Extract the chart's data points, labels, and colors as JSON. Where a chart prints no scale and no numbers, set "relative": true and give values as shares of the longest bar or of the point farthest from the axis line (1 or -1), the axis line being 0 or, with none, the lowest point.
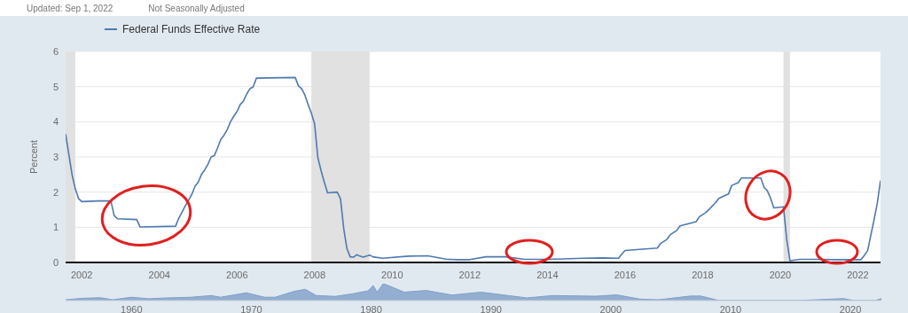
{
  "chart_data": [
    {
      "type": "line",
      "ylabel": "Percent",
      "annotations": [
        "Updated: Sep 1, 2022",
        "Not Seasonally Adjusted"
      ],
      "x": [
        "2001-08",
        "2001-09",
        "2001-10",
        "2001-11",
        "2001-12",
        "2002-01",
        "2002-06",
        "2002-10",
        "2002-11",
        "2002-12",
        "2003-06",
        "2003-07",
        "2004-06",
        "2004-07",
        "2004-08",
        "2004-09",
        "2004-10",
        "2004-11",
        "2004-12",
        "2005-01",
        "2005-02",
        "2005-03",
        "2005-04",
        "2005-05",
        "2005-06",
        "2005-07",
        "2005-08",
        "2005-09",
        "2005-10",
        "2005-11",
        "2005-12",
        "2006-01",
        "2006-02",
        "2006-03",
        "2006-04",
        "2006-05",
        "2006-06",
        "2006-07",
        "2007-07",
        "2007-08",
        "2007-09",
        "2007-10",
        "2007-11",
        "2007-12",
        "2008-01",
        "2008-02",
        "2008-03",
        "2008-04",
        "2008-05",
        "2008-08",
        "2008-09",
        "2008-10",
        "2008-11",
        "2008-12",
        "2009-01",
        "2009-02",
        "2009-03",
        "2009-04",
        "2009-06",
        "2009-07",
        "2009-10",
        "2010-06",
        "2010-12",
        "2011-06",
        "2011-09",
        "2012-01",
        "2012-06",
        "2012-12",
        "2013-06",
        "2013-12",
        "2014-06",
        "2014-12",
        "2015-06",
        "2015-11",
        "2015-12",
        "2016-01",
        "2016-11",
        "2016-12",
        "2017-02",
        "2017-03",
        "2017-05",
        "2017-06",
        "2017-11",
        "2017-12",
        "2018-02",
        "2018-03",
        "2018-05",
        "2018-06",
        "2018-08",
        "2018-09",
        "2018-10",
        "2018-12",
        "2019-01",
        "2019-07",
        "2019-08",
        "2019-09",
        "2019-10",
        "2019-11",
        "2020-02",
        "2020-03",
        "2020-04",
        "2020-07",
        "2021-01",
        "2021-06",
        "2022-02",
        "2022-03",
        "2022-04",
        "2022-05",
        "2022-06",
        "2022-07",
        "2022-08"
      ],
      "series": [
        {
          "name": "Federal Funds Effective Rate",
          "color": "#4e79b0",
          "values": [
            3.65,
            3.07,
            2.49,
            2.09,
            1.82,
            1.73,
            1.75,
            1.75,
            1.34,
            1.24,
            1.22,
            1.01,
            1.03,
            1.26,
            1.43,
            1.61,
            1.76,
            1.93,
            2.16,
            2.28,
            2.5,
            2.63,
            2.79,
            3.0,
            3.04,
            3.26,
            3.5,
            3.62,
            3.78,
            4.0,
            4.16,
            4.29,
            4.49,
            4.59,
            4.79,
            4.94,
            4.99,
            5.24,
            5.26,
            5.02,
            4.94,
            4.76,
            4.49,
            4.24,
            3.94,
            2.98,
            2.61,
            2.28,
            1.98,
            2.0,
            1.81,
            0.97,
            0.39,
            0.16,
            0.15,
            0.22,
            0.18,
            0.15,
            0.21,
            0.16,
            0.12,
            0.18,
            0.19,
            0.09,
            0.08,
            0.08,
            0.16,
            0.16,
            0.09,
            0.09,
            0.1,
            0.12,
            0.13,
            0.12,
            0.24,
            0.34,
            0.41,
            0.54,
            0.66,
            0.79,
            0.91,
            1.04,
            1.16,
            1.3,
            1.42,
            1.51,
            1.7,
            1.82,
            1.91,
            1.95,
            2.19,
            2.27,
            2.4,
            2.4,
            2.13,
            2.04,
            1.83,
            1.55,
            1.58,
            0.65,
            0.05,
            0.09,
            0.09,
            0.08,
            0.08,
            0.2,
            0.33,
            0.77,
            1.21,
            1.68,
            2.33
          ]
        }
      ],
      "xlim": [
        "2001-08",
        "2022-08"
      ],
      "xticks": [
        "2002",
        "2004",
        "2006",
        "2008",
        "2010",
        "2012",
        "2014",
        "2016",
        "2018",
        "2020",
        "2022"
      ],
      "ylim": [
        0,
        6
      ],
      "yticks": [
        0,
        1,
        2,
        3,
        4,
        5,
        6
      ],
      "grid": "y",
      "legend": "top left",
      "bands": [
        {
          "axis": "x",
          "from": "2001-08",
          "to": "2001-11",
          "color": "#e1e1e1"
        },
        {
          "axis": "x",
          "from": "2007-12",
          "to": "2009-06",
          "color": "#e1e1e1"
        },
        {
          "axis": "x",
          "from": "2020-02",
          "to": "2020-04",
          "color": "#e1e1e1"
        }
      ]
    },
    {
      "type": "area",
      "relative": true,
      "x": [
        "1954-07",
        "1956-01",
        "1957-06",
        "1958-06",
        "1960-01",
        "1961-06",
        "1963-01",
        "1965-01",
        "1966-09",
        "1967-06",
        "1969-08",
        "1971-02",
        "1972-01",
        "1973-08",
        "1974-07",
        "1975-06",
        "1977-01",
        "1978-06",
        "1979-10",
        "1980-03",
        "1980-07",
        "1981-01",
        "1981-06",
        "1982-10",
        "1984-08",
        "1986-10",
        "1989-03",
        "1991-06",
        "1993-01",
        "1995-03",
        "1998-10",
        "2000-07",
        "2002-06",
        "2004-01",
        "2006-09",
        "2007-07",
        "2009-01",
        "2015-12",
        "2019-06",
        "2020-04",
        "2022-02",
        "2022-08"
      ],
      "series": [
        {
          "color": "#7f9fc8",
          "values": [
            0.05,
            0.14,
            0.17,
            0.05,
            0.2,
            0.11,
            0.16,
            0.2,
            0.3,
            0.2,
            0.46,
            0.2,
            0.2,
            0.55,
            0.67,
            0.3,
            0.25,
            0.4,
            0.58,
            0.9,
            0.5,
            1,
            0.9,
            0.5,
            0.6,
            0.33,
            0.5,
            0.3,
            0.16,
            0.3,
            0.26,
            0.34,
            0.09,
            0.05,
            0.27,
            0.27,
            0.01,
            0.01,
            0.12,
            0.005,
            0.005,
            0.12
          ]
        }
      ],
      "xlim": [
        "1954-07",
        "2022-08"
      ],
      "xticks": [
        "1960",
        "1970",
        "1980",
        "1990",
        "2000",
        "2010",
        "2020"
      ]
    }
  ]
}
